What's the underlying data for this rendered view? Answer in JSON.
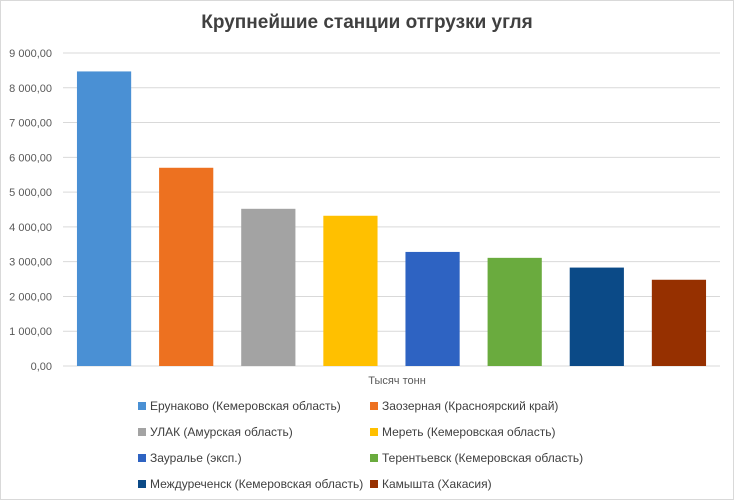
{
  "chart_data": {
    "type": "bar",
    "title": "Крупнейшие станции отгрузки угля",
    "xlabel": "Тысяч тонн",
    "ylabel": "",
    "ylim": [
      0,
      9000
    ],
    "yticks": [
      "0,00",
      "1 000,00",
      "2 000,00",
      "3 000,00",
      "4 000,00",
      "5 000,00",
      "6 000,00",
      "7 000,00",
      "8 000,00",
      "9 000,00"
    ],
    "grid": true,
    "legend_position": "bottom",
    "categories": [
      "Ерунаково (Кемеровская область)",
      "Заозерная (Красноярский край)",
      "УЛАК (Амурская область)",
      "Мереть (Кемеровская область)",
      "Зауралье (эксп.)",
      "Терентьевск (Кемеровская область)",
      "Междуреченск (Кемеровская область)",
      "Камышта (Хакасия)"
    ],
    "values": [
      8470,
      5700,
      4520,
      4320,
      3280,
      3110,
      2830,
      2480
    ],
    "colors": [
      "#4a90d4",
      "#ed7120",
      "#a3a3a3",
      "#ffc000",
      "#2e63c2",
      "#6aab3e",
      "#0b4a87",
      "#963000"
    ]
  }
}
